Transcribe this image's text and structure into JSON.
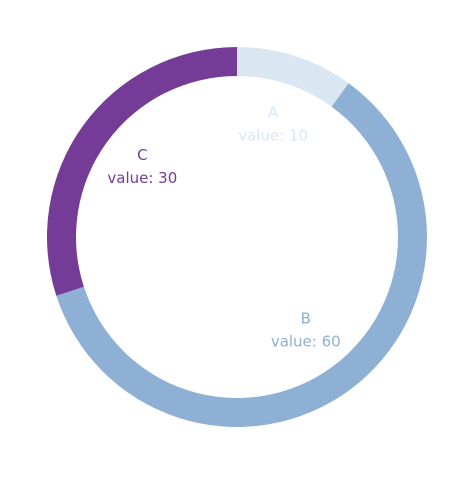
{
  "chart_data": {
    "type": "pie",
    "variant": "donut",
    "series": [
      {
        "name": "A",
        "value": 10,
        "value_label": "value: 10",
        "color": "#d9e7f3"
      },
      {
        "name": "B",
        "value": 60,
        "value_label": "value: 60",
        "color": "#8eb0d4"
      },
      {
        "name": "C",
        "value": 30,
        "value_label": "value: 30",
        "color": "#743b97"
      }
    ],
    "start_angle": "top",
    "direction": "clockwise",
    "legend": "none"
  }
}
